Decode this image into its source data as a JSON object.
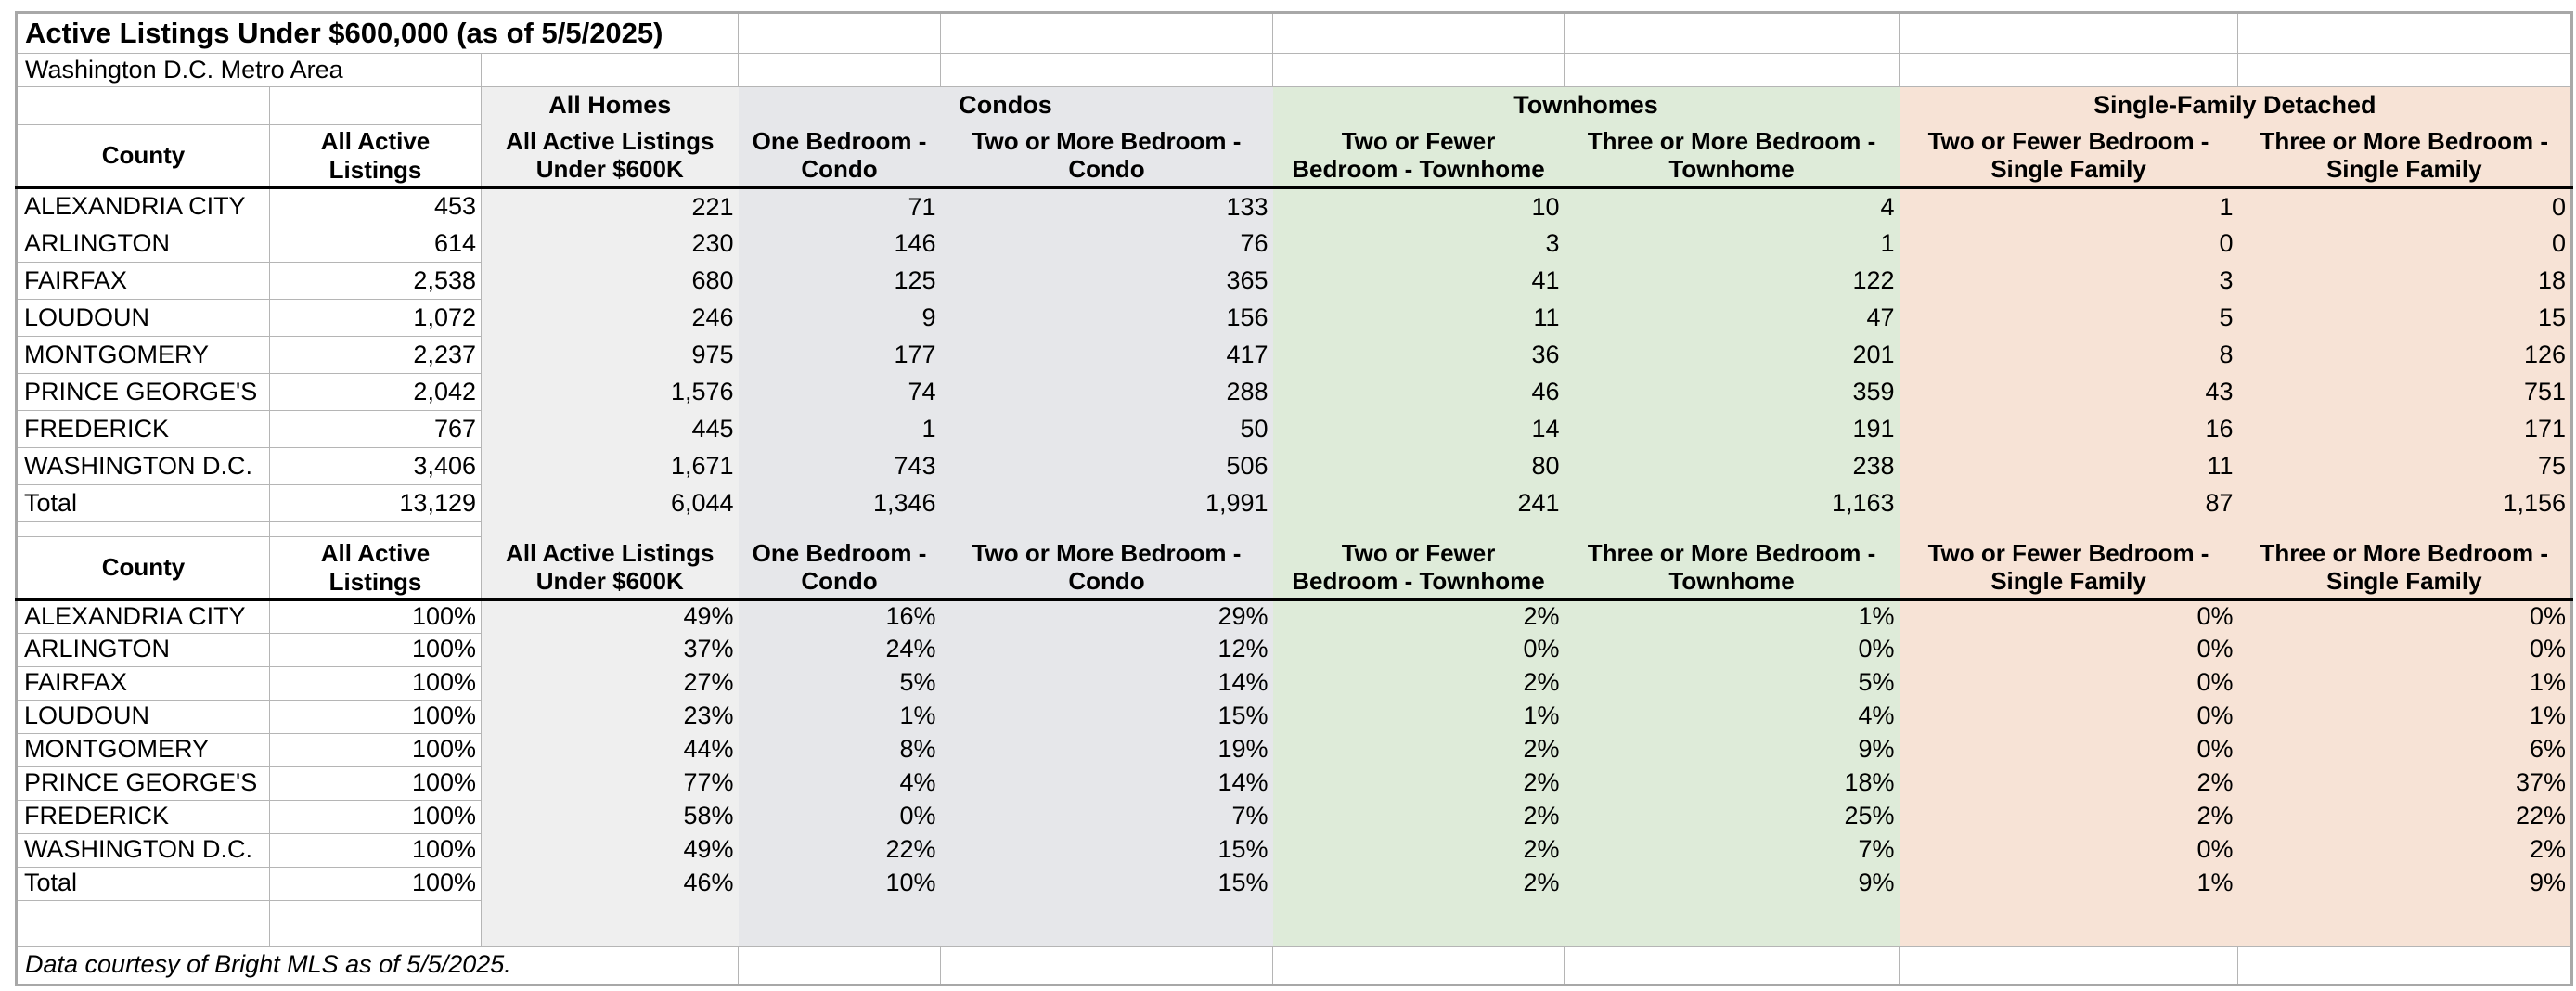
{
  "title": "Active Listings Under $600,000 (as of 5/5/2025)",
  "subtitle": "Washington D.C. Metro Area",
  "footer_note": "Data courtesy of Bright MLS as of 5/5/2025.",
  "colors": {
    "all_homes": "#efefef",
    "condos": "#e6e7ea",
    "townhomes": "#deebd9",
    "single_family": "#f7e3d6",
    "gridline": "#b5b5b5",
    "header_underline": "#000000",
    "outer_border": "#a8a8a8"
  },
  "group_headers": [
    "All Homes",
    "Condos",
    "Townhomes",
    "Single-Family Detached"
  ],
  "column_headers_display": [
    "County",
    "All Active\nListings",
    "All Active Listings\nUnder $600K",
    "One Bedroom -\nCondo",
    "Two or More Bedroom -\nCondo",
    "Two or Fewer\nBedroom - Townhome",
    "Three or More Bedroom -\nTownhome",
    "Two or Fewer Bedroom -\nSingle Family",
    "Three or More Bedroom -\nSingle Family"
  ],
  "counts_table": {
    "rows": [
      {
        "county": "ALEXANDRIA CITY",
        "values": [
          "453",
          "221",
          "71",
          "133",
          "10",
          "4",
          "1",
          "0"
        ]
      },
      {
        "county": "ARLINGTON",
        "values": [
          "614",
          "230",
          "146",
          "76",
          "3",
          "1",
          "0",
          "0"
        ]
      },
      {
        "county": "FAIRFAX",
        "values": [
          "2,538",
          "680",
          "125",
          "365",
          "41",
          "122",
          "3",
          "18"
        ]
      },
      {
        "county": "LOUDOUN",
        "values": [
          "1,072",
          "246",
          "9",
          "156",
          "11",
          "47",
          "5",
          "15"
        ]
      },
      {
        "county": "MONTGOMERY",
        "values": [
          "2,237",
          "975",
          "177",
          "417",
          "36",
          "201",
          "8",
          "126"
        ]
      },
      {
        "county": "PRINCE GEORGE'S",
        "values": [
          "2,042",
          "1,576",
          "74",
          "288",
          "46",
          "359",
          "43",
          "751"
        ]
      },
      {
        "county": "FREDERICK",
        "values": [
          "767",
          "445",
          "1",
          "50",
          "14",
          "191",
          "16",
          "171"
        ]
      },
      {
        "county": "WASHINGTON D.C.",
        "values": [
          "3,406",
          "1,671",
          "743",
          "506",
          "80",
          "238",
          "11",
          "75"
        ]
      },
      {
        "county": "Total",
        "values": [
          "13,129",
          "6,044",
          "1,346",
          "1,991",
          "241",
          "1,163",
          "87",
          "1,156"
        ]
      }
    ]
  },
  "percent_table": {
    "rows": [
      {
        "county": "ALEXANDRIA CITY",
        "values": [
          "100%",
          "49%",
          "16%",
          "29%",
          "2%",
          "1%",
          "0%",
          "0%"
        ]
      },
      {
        "county": "ARLINGTON",
        "values": [
          "100%",
          "37%",
          "24%",
          "12%",
          "0%",
          "0%",
          "0%",
          "0%"
        ]
      },
      {
        "county": "FAIRFAX",
        "values": [
          "100%",
          "27%",
          "5%",
          "14%",
          "2%",
          "5%",
          "0%",
          "1%"
        ]
      },
      {
        "county": "LOUDOUN",
        "values": [
          "100%",
          "23%",
          "1%",
          "15%",
          "1%",
          "4%",
          "0%",
          "1%"
        ]
      },
      {
        "county": "MONTGOMERY",
        "values": [
          "100%",
          "44%",
          "8%",
          "19%",
          "2%",
          "9%",
          "0%",
          "6%"
        ]
      },
      {
        "county": "PRINCE GEORGE'S",
        "values": [
          "100%",
          "77%",
          "4%",
          "14%",
          "2%",
          "18%",
          "2%",
          "37%"
        ]
      },
      {
        "county": "FREDERICK",
        "values": [
          "100%",
          "58%",
          "0%",
          "7%",
          "2%",
          "25%",
          "2%",
          "22%"
        ]
      },
      {
        "county": "WASHINGTON D.C.",
        "values": [
          "100%",
          "49%",
          "22%",
          "15%",
          "2%",
          "7%",
          "0%",
          "2%"
        ]
      },
      {
        "county": "Total",
        "values": [
          "100%",
          "46%",
          "10%",
          "15%",
          "2%",
          "9%",
          "1%",
          "9%"
        ]
      }
    ]
  },
  "chart_data": {
    "type": "table",
    "title": "Active Listings Under $600,000 (as of 5/5/2025)",
    "subtitle": "Washington D.C. Metro Area",
    "footnote": "Data courtesy of Bright MLS as of 5/5/2025.",
    "column_groups": [
      {
        "label": "All Homes",
        "columns": [
          "All Active Listings Under $600K"
        ]
      },
      {
        "label": "Condos",
        "columns": [
          "One Bedroom - Condo",
          "Two or More Bedroom - Condo"
        ]
      },
      {
        "label": "Townhomes",
        "columns": [
          "Two or Fewer Bedroom - Townhome",
          "Three or More Bedroom - Townhome"
        ]
      },
      {
        "label": "Single-Family Detached",
        "columns": [
          "Two or Fewer Bedroom - Single Family",
          "Three or More Bedroom - Single Family"
        ]
      }
    ],
    "columns": [
      "County",
      "All Active Listings",
      "All Active Listings Under $600K",
      "One Bedroom - Condo",
      "Two or More Bedroom - Condo",
      "Two or Fewer Bedroom - Townhome",
      "Three or More Bedroom - Townhome",
      "Two or Fewer Bedroom - Single Family",
      "Three or More Bedroom - Single Family"
    ],
    "counts": [
      [
        "ALEXANDRIA CITY",
        453,
        221,
        71,
        133,
        10,
        4,
        1,
        0
      ],
      [
        "ARLINGTON",
        614,
        230,
        146,
        76,
        3,
        1,
        0,
        0
      ],
      [
        "FAIRFAX",
        2538,
        680,
        125,
        365,
        41,
        122,
        3,
        18
      ],
      [
        "LOUDOUN",
        1072,
        246,
        9,
        156,
        11,
        47,
        5,
        15
      ],
      [
        "MONTGOMERY",
        2237,
        975,
        177,
        417,
        36,
        201,
        8,
        126
      ],
      [
        "PRINCE GEORGE'S",
        2042,
        1576,
        74,
        288,
        46,
        359,
        43,
        751
      ],
      [
        "FREDERICK",
        767,
        445,
        1,
        50,
        14,
        191,
        16,
        171
      ],
      [
        "WASHINGTON D.C.",
        3406,
        1671,
        743,
        506,
        80,
        238,
        11,
        75
      ],
      [
        "Total",
        13129,
        6044,
        1346,
        1991,
        241,
        1163,
        87,
        1156
      ]
    ],
    "percentages": [
      [
        "ALEXANDRIA CITY",
        100,
        49,
        16,
        29,
        2,
        1,
        0,
        0
      ],
      [
        "ARLINGTON",
        100,
        37,
        24,
        12,
        0,
        0,
        0,
        0
      ],
      [
        "FAIRFAX",
        100,
        27,
        5,
        14,
        2,
        5,
        0,
        1
      ],
      [
        "LOUDOUN",
        100,
        23,
        1,
        15,
        1,
        4,
        0,
        1
      ],
      [
        "MONTGOMERY",
        100,
        44,
        8,
        19,
        2,
        9,
        0,
        6
      ],
      [
        "PRINCE GEORGE'S",
        100,
        77,
        4,
        14,
        2,
        18,
        2,
        37
      ],
      [
        "FREDERICK",
        100,
        58,
        0,
        7,
        2,
        25,
        2,
        22
      ],
      [
        "WASHINGTON D.C.",
        100,
        49,
        22,
        15,
        2,
        7,
        0,
        2
      ],
      [
        "Total",
        100,
        46,
        10,
        15,
        2,
        9,
        1,
        9
      ]
    ]
  }
}
